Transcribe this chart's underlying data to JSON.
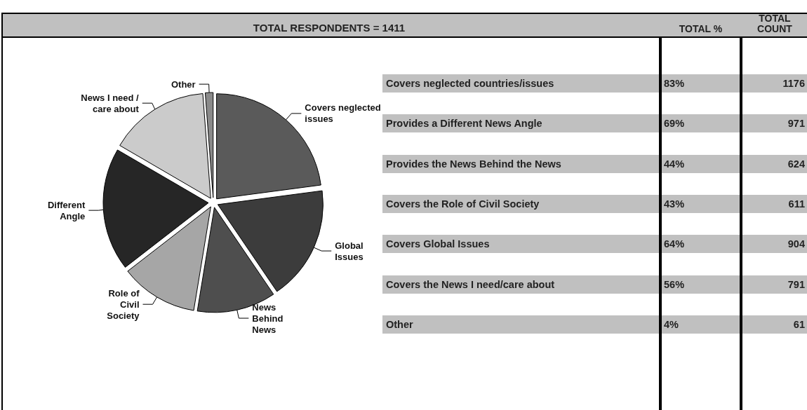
{
  "chart_data": [
    {
      "type": "pie",
      "title": "TOTAL RESPONDENTS = 1411",
      "categories": [
        "Covers neglected\nissues",
        "Global\nIssues",
        "News\nBehind\nNews",
        "Role of\nCivil\nSociety",
        "Different\nAngle",
        "News I need /\ncare about",
        "Other"
      ],
      "values": [
        22.9,
        17.6,
        12.1,
        11.9,
        18.9,
        15.4,
        1.2
      ],
      "colors": [
        "#5a5a5a",
        "#3c3c3c",
        "#4e4e4e",
        "#a6a6a6",
        "#262626",
        "#cbcbcb",
        "#8a8a8a"
      ],
      "legend": false
    },
    {
      "type": "other",
      "categories": [
        "Covers neglected countries/issues",
        "Provides a Different News Angle",
        "Provides the News Behind the News",
        "Covers the Role of Civil Society",
        "Covers Global Issues",
        "Covers the News I need/care about",
        "Other"
      ],
      "annotations": [
        "TOTAL %",
        "TOTAL COUNT",
        "83%",
        "1176",
        "69%",
        "971",
        "44%",
        "624",
        "43%",
        "611",
        "64%",
        "904",
        "56%",
        "791",
        "4%",
        "61"
      ]
    }
  ]
}
